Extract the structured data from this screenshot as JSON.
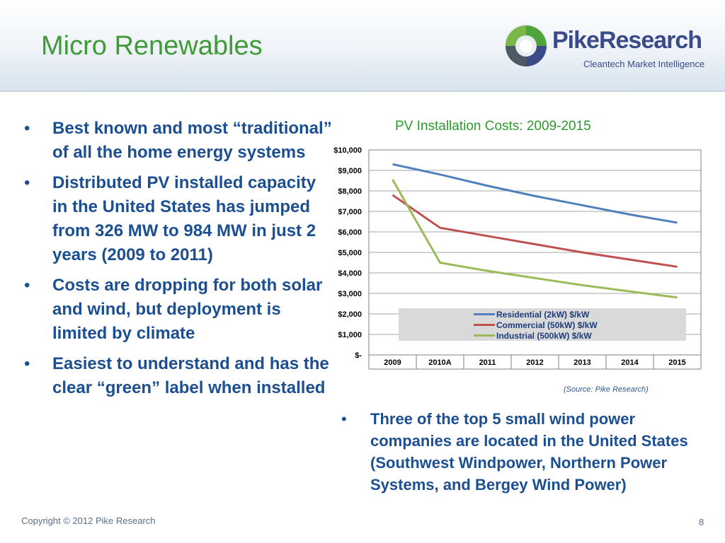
{
  "slide": {
    "title": "Micro Renewables",
    "page_number": "8",
    "copyright": "Copyright © 2012 Pike Research"
  },
  "logo": {
    "name_part1": "Pike",
    "name_part2": "Research",
    "tagline": "Cleantech Market Intelligence",
    "colors": {
      "green": "#4ea33b",
      "blue": "#3a4b88"
    }
  },
  "left_bullets": [
    "Best known and most “traditional” of all the home energy systems",
    "Distributed PV installed capacity in the United States has jumped from 326 MW to 984 MW in just 2 years (2009 to 2011)",
    "Costs are dropping for both solar and wind, but deployment is limited by climate",
    "Easiest to understand and has the clear “green” label when installed"
  ],
  "right_bullets": [
    "Three of the top 5 small wind power companies are located in the United States (Southwest Windpower, Northern Power Systems, and Bergey Wind Power)"
  ],
  "bullet_glyph": "•",
  "source_note": "(Source: Pike Research)",
  "chart_data": {
    "type": "line",
    "title": "PV Installation Costs: 2009-2015",
    "categories": [
      "2009",
      "2010A",
      "2011",
      "2012",
      "2013",
      "2014",
      "2015"
    ],
    "series": [
      {
        "name": "Residential (2kW) $/kW",
        "color": "#4f81bd",
        "values": [
          9300,
          8800,
          8250,
          7750,
          7300,
          6850,
          6450
        ]
      },
      {
        "name": "Commercial (50kW) $/kW",
        "color": "#c0504d",
        "values": [
          7800,
          6200,
          5800,
          5400,
          5000,
          4650,
          4300
        ]
      },
      {
        "name": "Industrial (500kW) $/kW",
        "color": "#9bbb59",
        "values": [
          8550,
          4500,
          4100,
          3750,
          3400,
          3100,
          2800
        ]
      }
    ],
    "ylim": [
      0,
      10000
    ],
    "yticks": [
      0,
      1000,
      2000,
      3000,
      4000,
      5000,
      6000,
      7000,
      8000,
      9000,
      10000
    ],
    "ytick_labels": [
      "$-",
      "$1,000",
      "$2,000",
      "$3,000",
      "$4,000",
      "$5,000",
      "$6,000",
      "$7,000",
      "$8,000",
      "$9,000",
      "$10,000"
    ],
    "grid": true,
    "legend_position": "inside-bottom"
  }
}
